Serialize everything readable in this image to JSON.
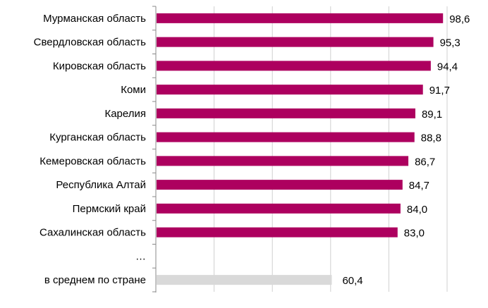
{
  "chart_data": {
    "type": "bar",
    "orientation": "horizontal",
    "categories": [
      "Мурманская область",
      "Свердловская область",
      "Кировская область",
      "Коми",
      "Карелия",
      "Курганская область",
      "Кемеровская область",
      "Республика Алтай",
      "Пермский край",
      "Сахалинская область",
      "…",
      "в среднем по стране"
    ],
    "values": [
      98.6,
      95.3,
      94.4,
      91.7,
      89.1,
      88.8,
      86.7,
      84.7,
      84.0,
      83.0,
      null,
      60.4
    ],
    "data_labels": [
      "98,6",
      "95,3",
      "94,4",
      "91,7",
      "89,1",
      "88,8",
      "86,7",
      "84,7",
      "84,0",
      "83,0",
      "",
      "60,4"
    ],
    "title": "",
    "xlabel": "",
    "ylabel": "",
    "xlim": [
      0,
      100
    ],
    "grid": "vertical, every 20",
    "legend": "none",
    "colors": {
      "bar": "#AD005F",
      "average_bar": "#D9D9D9",
      "grid": "#D0D0D0",
      "axis": "#888888"
    }
  }
}
